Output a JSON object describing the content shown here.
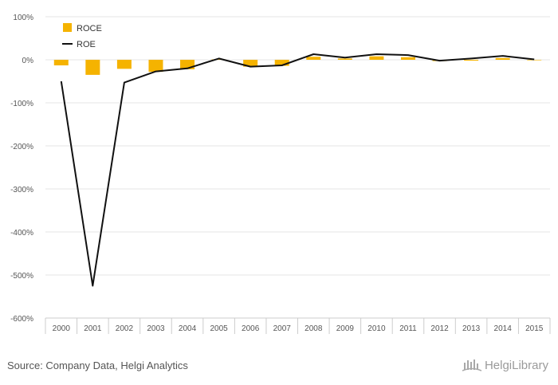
{
  "chart_data": {
    "type": "bar",
    "categories": [
      "2000",
      "2001",
      "2002",
      "2003",
      "2004",
      "2005",
      "2006",
      "2007",
      "2008",
      "2009",
      "2010",
      "2011",
      "2012",
      "2013",
      "2014",
      "2015"
    ],
    "series": [
      {
        "name": "ROCE",
        "type": "bar",
        "color": "#f5b300",
        "values": [
          -13,
          -35,
          -21,
          -28,
          -22,
          1,
          -16,
          -14,
          7,
          3,
          8,
          6,
          -3,
          -2,
          4,
          0
        ]
      },
      {
        "name": "ROE",
        "type": "line",
        "color": "#111111",
        "values": [
          -50,
          -525,
          -53,
          -27,
          -20,
          3,
          -16,
          -13,
          13,
          5,
          13,
          11,
          -2,
          3,
          9,
          1
        ]
      }
    ],
    "y_ticks": [
      "100%",
      "0%",
      "-100%",
      "-200%",
      "-300%",
      "-400%",
      "-500%",
      "-600%"
    ],
    "ylim": [
      -600,
      100
    ],
    "y_unit": "%",
    "grid": true,
    "legend_position": "top-left"
  },
  "footer": {
    "source": "Source: Company Data, Helgi Analytics",
    "brand_name": "HelgiLibrary"
  }
}
